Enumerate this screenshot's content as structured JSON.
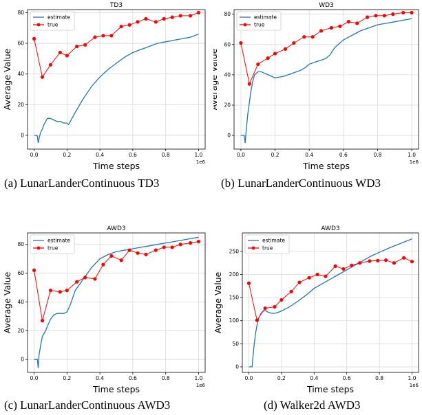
{
  "captions": [
    "(a) LunarLanderContinuous TD3",
    "(b) LunarLanderContinuous WD3",
    "(c) LunarLanderContinuous AWD3",
    "(d) Walker2d AWD3"
  ],
  "colors": {
    "estimate": "#1f77b4",
    "true": "#ff0000",
    "grid": "#d9d9d9"
  },
  "chart_data": [
    {
      "type": "line",
      "title": "TD3",
      "xlabel": "Time steps",
      "ylabel": "Average Value",
      "x_offset_label": "1e6",
      "xlim": [
        -0.04,
        1.04
      ],
      "ylim": [
        -9,
        82
      ],
      "xticks": [
        0.0,
        0.2,
        0.4,
        0.6,
        0.8,
        1.0
      ],
      "xtick_labels": [
        "0.0",
        "0.2",
        "0.4",
        "0.6",
        "0.8",
        "1.0"
      ],
      "yticks": [
        0,
        20,
        40,
        60,
        80
      ],
      "ytick_labels": [
        "0",
        "20",
        "40",
        "60",
        "80"
      ],
      "grid": true,
      "legend": "upper-left",
      "series": [
        {
          "name": "estimate",
          "style": "line",
          "x": [
            0.0,
            0.01,
            0.02,
            0.025,
            0.03,
            0.04,
            0.05,
            0.06,
            0.07,
            0.08,
            0.1,
            0.12,
            0.14,
            0.16,
            0.18,
            0.2,
            0.21,
            0.22,
            0.25,
            0.3,
            0.35,
            0.4,
            0.45,
            0.5,
            0.55,
            0.6,
            0.65,
            0.7,
            0.75,
            0.8,
            0.85,
            0.9,
            0.95,
            1.0
          ],
          "y": [
            0,
            0,
            -0.5,
            -5,
            -2,
            2,
            4,
            7,
            9,
            11,
            11,
            10,
            9,
            9,
            8,
            8,
            7,
            9,
            15,
            24,
            32,
            38,
            43,
            47,
            51,
            54,
            56,
            58,
            60,
            61,
            62,
            63,
            64,
            66
          ]
        },
        {
          "name": "true",
          "style": "line-marker",
          "x": [
            0.0,
            0.05,
            0.1,
            0.158,
            0.2,
            0.26,
            0.31,
            0.37,
            0.42,
            0.47,
            0.53,
            0.58,
            0.63,
            0.68,
            0.74,
            0.79,
            0.84,
            0.89,
            0.95,
            1.0
          ],
          "y": [
            63,
            38,
            46,
            54,
            52,
            58,
            59,
            64,
            65,
            65,
            71,
            72,
            74,
            76,
            74,
            76,
            77,
            78,
            78,
            80
          ]
        }
      ]
    },
    {
      "type": "line",
      "title": "WD3",
      "xlabel": "Time steps",
      "ylabel": "Average Value",
      "x_offset_label": "1e6",
      "xlim": [
        -0.04,
        1.04
      ],
      "ylim": [
        -9,
        83
      ],
      "xticks": [
        0.0,
        0.2,
        0.4,
        0.6,
        0.8,
        1.0
      ],
      "xtick_labels": [
        "0.0",
        "0.2",
        "0.4",
        "0.6",
        "0.8",
        "1.0"
      ],
      "yticks": [
        0,
        20,
        40,
        60,
        80
      ],
      "ytick_labels": [
        "0",
        "20",
        "40",
        "60",
        "80"
      ],
      "grid": true,
      "legend": "upper-left",
      "series": [
        {
          "name": "estimate",
          "style": "line",
          "x": [
            0.0,
            0.01,
            0.02,
            0.025,
            0.03,
            0.04,
            0.05,
            0.06,
            0.07,
            0.08,
            0.09,
            0.1,
            0.12,
            0.14,
            0.16,
            0.18,
            0.2,
            0.25,
            0.3,
            0.35,
            0.38,
            0.4,
            0.45,
            0.48,
            0.5,
            0.52,
            0.55,
            0.6,
            0.65,
            0.7,
            0.75,
            0.8,
            0.85,
            0.9,
            0.95,
            1.0
          ],
          "y": [
            0,
            0,
            0,
            -5,
            2,
            14,
            22,
            30,
            36,
            40,
            41,
            42,
            42,
            41,
            40,
            39,
            38,
            39,
            41,
            43,
            45,
            47,
            49,
            50,
            51,
            53,
            58,
            63,
            66,
            69,
            71,
            73,
            74,
            75,
            76,
            77
          ]
        },
        {
          "name": "true",
          "style": "line-marker",
          "x": [
            0.0,
            0.05,
            0.1,
            0.158,
            0.2,
            0.26,
            0.31,
            0.37,
            0.42,
            0.47,
            0.53,
            0.58,
            0.63,
            0.68,
            0.74,
            0.79,
            0.84,
            0.89,
            0.95,
            1.0
          ],
          "y": [
            61,
            34,
            47,
            51,
            54,
            57,
            61,
            65,
            65,
            69,
            71,
            72,
            75,
            74,
            78,
            79,
            79,
            80,
            81,
            81
          ]
        }
      ]
    },
    {
      "type": "line",
      "title": "AWD3",
      "xlabel": "Time steps",
      "ylabel": "Average Value",
      "x_offset_label": "1e6",
      "xlim": [
        -0.04,
        1.04
      ],
      "ylim": [
        -9,
        88
      ],
      "xticks": [
        0.0,
        0.2,
        0.4,
        0.6,
        0.8,
        1.0
      ],
      "xtick_labels": [
        "0.0",
        "0.2",
        "0.4",
        "0.6",
        "0.8",
        "1.0"
      ],
      "yticks": [
        0,
        20,
        40,
        60,
        80
      ],
      "ytick_labels": [
        "0",
        "20",
        "40",
        "60",
        "80"
      ],
      "grid": true,
      "legend": "upper-left",
      "series": [
        {
          "name": "estimate",
          "style": "line",
          "x": [
            0.0,
            0.01,
            0.02,
            0.025,
            0.03,
            0.04,
            0.05,
            0.06,
            0.07,
            0.08,
            0.1,
            0.12,
            0.14,
            0.16,
            0.18,
            0.2,
            0.22,
            0.25,
            0.3,
            0.35,
            0.4,
            0.45,
            0.5,
            0.55,
            0.6,
            0.65,
            0.7,
            0.75,
            0.8,
            0.85,
            0.9,
            0.95,
            1.0
          ],
          "y": [
            0,
            0,
            0,
            -6,
            3,
            10,
            16,
            18,
            20,
            23,
            28,
            31,
            32,
            32,
            32,
            33,
            38,
            48,
            56,
            64,
            70,
            73,
            75,
            76,
            77,
            78,
            79,
            80,
            81,
            82,
            83,
            84,
            85
          ]
        },
        {
          "name": "true",
          "style": "line-marker",
          "x": [
            0.0,
            0.05,
            0.1,
            0.158,
            0.2,
            0.26,
            0.31,
            0.37,
            0.42,
            0.47,
            0.53,
            0.58,
            0.63,
            0.68,
            0.74,
            0.79,
            0.84,
            0.89,
            0.95,
            1.0
          ],
          "y": [
            62,
            27,
            48,
            47,
            48,
            54,
            57,
            56,
            66,
            72,
            69,
            76,
            74,
            73,
            76,
            78,
            78,
            80,
            81,
            82
          ]
        }
      ]
    },
    {
      "type": "line",
      "title": "AWD3",
      "xlabel": "Time steps",
      "ylabel": "Average Value",
      "x_offset_label": "1e6",
      "xlim": [
        -0.04,
        1.04
      ],
      "ylim": [
        -12,
        290
      ],
      "xticks": [
        0.0,
        0.2,
        0.4,
        0.6,
        0.8,
        1.0
      ],
      "xtick_labels": [
        "0.0",
        "0.2",
        "0.4",
        "0.6",
        "0.8",
        "1.0"
      ],
      "yticks": [
        0,
        50,
        100,
        150,
        200,
        250
      ],
      "ytick_labels": [
        "0",
        "50",
        "100",
        "150",
        "200",
        "250"
      ],
      "grid": true,
      "legend": "upper-left",
      "series": [
        {
          "name": "estimate",
          "style": "line",
          "x": [
            0.0,
            0.01,
            0.02,
            0.03,
            0.04,
            0.05,
            0.06,
            0.07,
            0.08,
            0.09,
            0.1,
            0.12,
            0.14,
            0.16,
            0.18,
            0.2,
            0.25,
            0.3,
            0.35,
            0.4,
            0.45,
            0.5,
            0.55,
            0.6,
            0.65,
            0.7,
            0.75,
            0.8,
            0.85,
            0.9,
            0.95,
            1.0
          ],
          "y": [
            0,
            0,
            0,
            40,
            70,
            90,
            105,
            113,
            118,
            121,
            122,
            118,
            116,
            116,
            118,
            121,
            130,
            142,
            155,
            170,
            180,
            190,
            200,
            210,
            220,
            230,
            240,
            248,
            256,
            263,
            270,
            277
          ]
        },
        {
          "name": "true",
          "style": "line-marker",
          "x": [
            0.0,
            0.05,
            0.1,
            0.158,
            0.2,
            0.26,
            0.31,
            0.37,
            0.42,
            0.47,
            0.53,
            0.58,
            0.63,
            0.68,
            0.74,
            0.79,
            0.84,
            0.89,
            0.95,
            1.0
          ],
          "y": [
            181,
            101,
            127,
            130,
            145,
            163,
            183,
            193,
            200,
            196,
            218,
            212,
            220,
            225,
            229,
            230,
            231,
            225,
            236,
            228
          ]
        }
      ]
    }
  ]
}
